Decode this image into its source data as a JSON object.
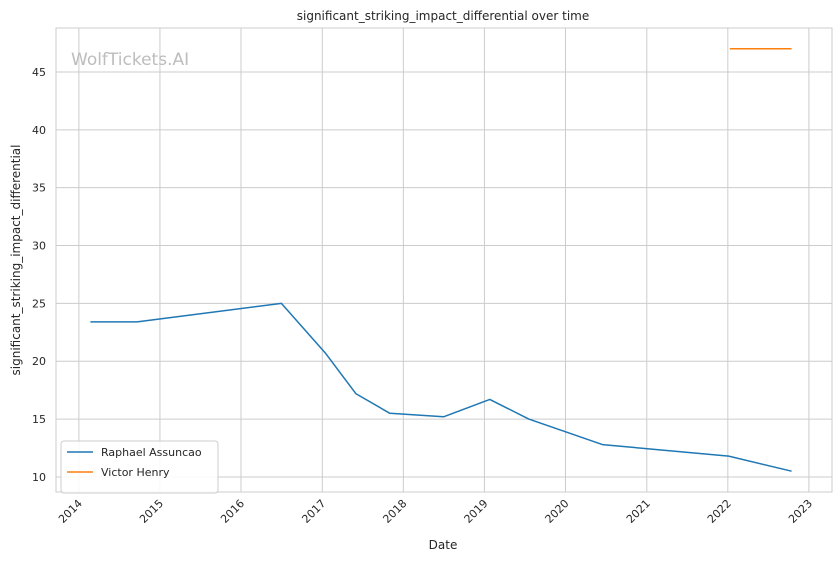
{
  "chart_data": {
    "type": "line",
    "title": "significant_striking_impact_differential over time",
    "xlabel": "Date",
    "ylabel": "significant_striking_impact_differential",
    "watermark": "WolfTickets.AI",
    "xlim": [
      "2013-09-20",
      "2023-04-15"
    ],
    "ylim": [
      8.7,
      48.8
    ],
    "x_ticks": [
      "2014",
      "2015",
      "2016",
      "2017",
      "2018",
      "2019",
      "2020",
      "2021",
      "2022",
      "2023"
    ],
    "y_ticks": [
      10,
      15,
      20,
      25,
      30,
      35,
      40,
      45
    ],
    "grid": true,
    "legend_position": "bottom-left",
    "series": [
      {
        "name": "Raphael Assuncao",
        "color": "#1f77b4",
        "points": [
          {
            "x": "2014-02-22",
            "y": 23.4
          },
          {
            "x": "2014-09-20",
            "y": 23.4
          },
          {
            "x": "2016-07-01",
            "y": 25.0
          },
          {
            "x": "2017-01-15",
            "y": 20.7
          },
          {
            "x": "2017-06-01",
            "y": 17.2
          },
          {
            "x": "2017-11-01",
            "y": 15.5
          },
          {
            "x": "2018-07-01",
            "y": 15.2
          },
          {
            "x": "2019-01-25",
            "y": 16.7
          },
          {
            "x": "2019-07-20",
            "y": 15.0
          },
          {
            "x": "2020-06-15",
            "y": 12.8
          },
          {
            "x": "2022-01-05",
            "y": 11.8
          },
          {
            "x": "2022-10-15",
            "y": 10.5
          }
        ]
      },
      {
        "name": "Victor Henry",
        "color": "#ff7f0e",
        "points": [
          {
            "x": "2022-01-10",
            "y": 47.0
          },
          {
            "x": "2022-10-15",
            "y": 47.0
          }
        ]
      }
    ]
  }
}
